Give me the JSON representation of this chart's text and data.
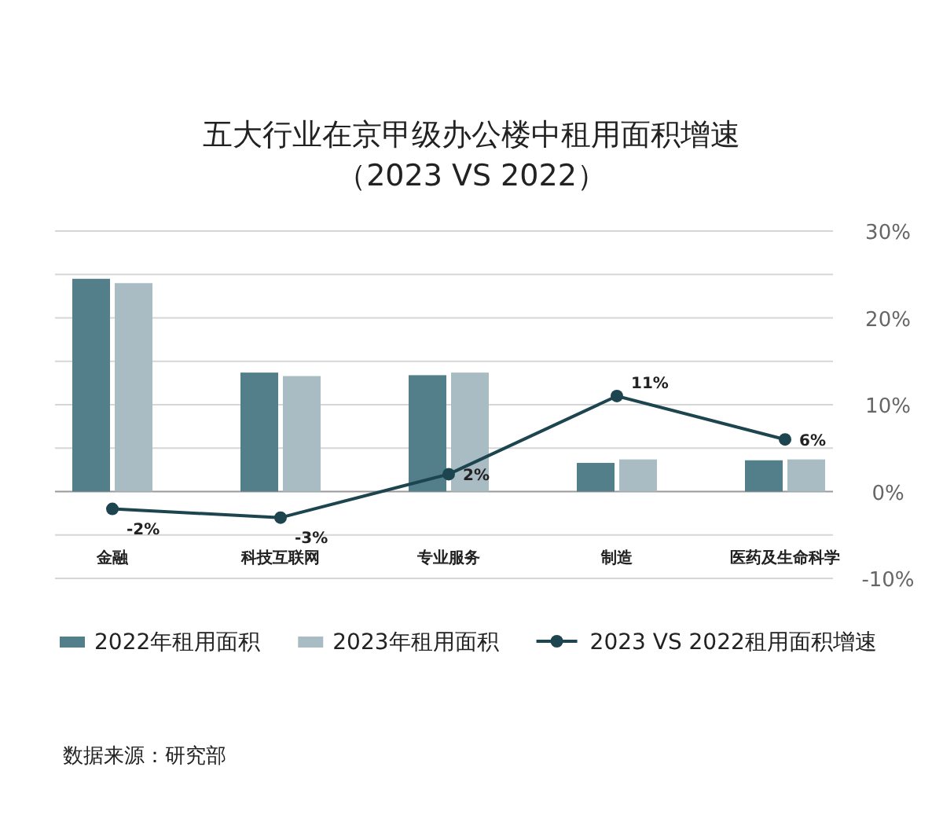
{
  "chart_data": {
    "type": "bar",
    "title": "五大行业在京甲级办公楼中租用面积增速",
    "subtitle": "（2023 VS 2022）",
    "categories": [
      "金融",
      "科技互联网",
      "专业服务",
      "制造",
      "医药及生命科学"
    ],
    "series": [
      {
        "name": "2022年租用面积",
        "color": "#527f8a",
        "values": [
          24.5,
          13.7,
          13.4,
          3.3,
          3.6
        ]
      },
      {
        "name": "2023年租用面积",
        "color": "#a9bcc3",
        "values": [
          24,
          13.3,
          13.7,
          3.7,
          3.7
        ]
      },
      {
        "name": "2023 VS 2022租用面积增速",
        "type": "line",
        "color": "#1d4550",
        "marker": "circle",
        "values": [
          -2,
          -3,
          2,
          11,
          6
        ],
        "value_labels": [
          "-2%",
          "-3%",
          "2%",
          "11%",
          "6%"
        ]
      }
    ],
    "ylim": [
      -10,
      30
    ],
    "yticks": [
      {
        "value": -10,
        "label": "-10%"
      },
      {
        "value": -5,
        "label": null
      },
      {
        "value": 0,
        "label": "0%"
      },
      {
        "value": 5,
        "label": null
      },
      {
        "value": 10,
        "label": "10%"
      },
      {
        "value": 15,
        "label": null
      },
      {
        "value": 20,
        "label": "20%"
      },
      {
        "value": 25,
        "label": null
      },
      {
        "value": 30,
        "label": "30%"
      }
    ],
    "grid": "y",
    "legend": "bottom",
    "annotations": [
      "数据来源：研究部"
    ]
  }
}
